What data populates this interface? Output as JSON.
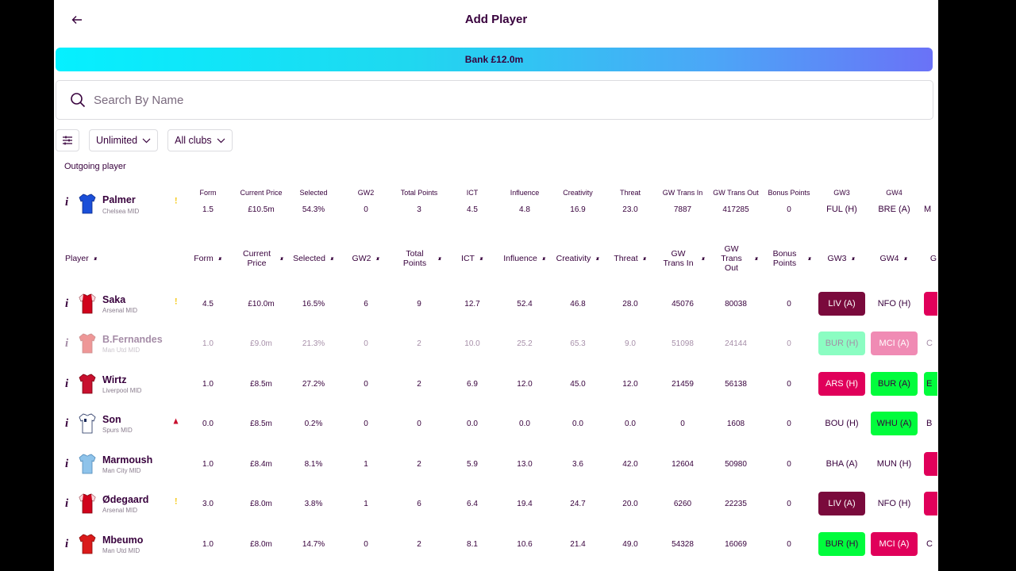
{
  "header": {
    "title": "Add Player",
    "back_icon": "arrow-left-icon"
  },
  "bank": {
    "label": "Bank £12.0m"
  },
  "search": {
    "placeholder": "Search By Name"
  },
  "filters": {
    "price": "Unlimited",
    "clubs": "All clubs"
  },
  "outgoing": {
    "label": "Outgoing player",
    "player": {
      "name": "Palmer",
      "club": "Chelsea MID",
      "shirt_color": "#1b4fd8",
      "flag": "yellow",
      "stats": [
        "1.5",
        "£10.5m",
        "54.3%",
        "0",
        "3",
        "4.5",
        "4.8",
        "16.9",
        "23.0",
        "7887",
        "417285",
        "0"
      ],
      "fixtures": [
        "FUL (H)",
        "BRE (A)",
        "M"
      ]
    },
    "headers": [
      "Form",
      "Current Price",
      "Selected",
      "GW2",
      "Total Points",
      "ICT",
      "Influence",
      "Creativity",
      "Threat",
      "GW Trans In",
      "GW Trans Out",
      "Bonus Points",
      "GW3",
      "GW4"
    ]
  },
  "table": {
    "headers": {
      "player": "Player",
      "form": "Form",
      "price": "Current Price",
      "selected": "Selected",
      "gw2": "GW2",
      "total": "Total Points",
      "ict": "ICT",
      "influence": "Influence",
      "creativity": "Creativity",
      "threat": "Threat",
      "trans_in": "GW Trans In",
      "trans_out": "GW Trans Out",
      "bonus": "Bonus Points",
      "gw3": "GW3",
      "gw4": "GW4",
      "gw5": "G"
    },
    "rows": [
      {
        "name": "Saka",
        "club": "Arsenal MID",
        "shirt": "arsenal",
        "flag": "yellow",
        "dim": false,
        "stats": [
          "4.5",
          "£10.0m",
          "16.5%",
          "6",
          "9",
          "12.7",
          "52.4",
          "46.8",
          "28.0",
          "45076",
          "80038",
          "0"
        ],
        "fixtures": [
          {
            "t": "LIV (A)",
            "bg": "#7a0a3c",
            "fg": "#ffffff"
          },
          {
            "t": "NFO (H)",
            "bg": "#ffffff",
            "fg": "#37003c"
          },
          {
            "t": "",
            "bg": "#e0005a",
            "fg": "#ffffff"
          }
        ]
      },
      {
        "name": "B.Fernandes",
        "club": "Man Utd MID",
        "shirt": "manutd",
        "flag": "",
        "dim": true,
        "stats": [
          "1.0",
          "£9.0m",
          "21.3%",
          "0",
          "2",
          "10.0",
          "25.2",
          "65.3",
          "9.0",
          "51098",
          "24144",
          "0"
        ],
        "fixtures": [
          {
            "t": "BUR (H)",
            "bg": "#01fc7a",
            "fg": "#37003c"
          },
          {
            "t": "MCI (A)",
            "bg": "#e0005a",
            "fg": "#ffffff"
          },
          {
            "t": "C",
            "bg": "#ffffff",
            "fg": "#37003c"
          }
        ]
      },
      {
        "name": "Wirtz",
        "club": "Liverpool MID",
        "shirt": "liverpool",
        "flag": "",
        "dim": false,
        "stats": [
          "1.0",
          "£8.5m",
          "27.2%",
          "0",
          "2",
          "6.9",
          "12.0",
          "45.0",
          "12.0",
          "21459",
          "56138",
          "0"
        ],
        "fixtures": [
          {
            "t": "ARS (H)",
            "bg": "#e0005a",
            "fg": "#ffffff"
          },
          {
            "t": "BUR (A)",
            "bg": "#01fc3c",
            "fg": "#37003c"
          },
          {
            "t": "E",
            "bg": "#01fc3c",
            "fg": "#37003c"
          }
        ]
      },
      {
        "name": "Son",
        "club": "Spurs MID",
        "shirt": "spurs",
        "flag": "red",
        "dim": false,
        "stats": [
          "0.0",
          "£8.5m",
          "0.2%",
          "0",
          "0",
          "0.0",
          "0.0",
          "0.0",
          "0.0",
          "0",
          "1608",
          "0"
        ],
        "fixtures": [
          {
            "t": "BOU (H)",
            "bg": "#ffffff",
            "fg": "#37003c"
          },
          {
            "t": "WHU (A)",
            "bg": "#01fc3c",
            "fg": "#37003c"
          },
          {
            "t": "B",
            "bg": "#ffffff",
            "fg": "#37003c"
          }
        ]
      },
      {
        "name": "Marmoush",
        "club": "Man City MID",
        "shirt": "mancity",
        "flag": "",
        "dim": false,
        "stats": [
          "1.0",
          "£8.4m",
          "8.1%",
          "1",
          "2",
          "5.9",
          "13.0",
          "3.6",
          "42.0",
          "12604",
          "50980",
          "0"
        ],
        "fixtures": [
          {
            "t": "BHA (A)",
            "bg": "#ffffff",
            "fg": "#37003c"
          },
          {
            "t": "MUN (H)",
            "bg": "#ffffff",
            "fg": "#37003c"
          },
          {
            "t": "",
            "bg": "#e0005a",
            "fg": "#ffffff"
          }
        ]
      },
      {
        "name": "Ødegaard",
        "club": "Arsenal MID",
        "shirt": "arsenal",
        "flag": "yellow",
        "dim": false,
        "stats": [
          "3.0",
          "£8.0m",
          "3.8%",
          "1",
          "6",
          "6.4",
          "19.4",
          "24.7",
          "20.0",
          "6260",
          "22235",
          "0"
        ],
        "fixtures": [
          {
            "t": "LIV (A)",
            "bg": "#7a0a3c",
            "fg": "#ffffff"
          },
          {
            "t": "NFO (H)",
            "bg": "#ffffff",
            "fg": "#37003c"
          },
          {
            "t": "",
            "bg": "#e0005a",
            "fg": "#ffffff"
          }
        ]
      },
      {
        "name": "Mbeumo",
        "club": "Man Utd MID",
        "shirt": "manutd",
        "flag": "",
        "dim": false,
        "stats": [
          "1.0",
          "£8.0m",
          "14.7%",
          "0",
          "2",
          "8.1",
          "10.6",
          "21.4",
          "49.0",
          "54328",
          "16069",
          "0"
        ],
        "fixtures": [
          {
            "t": "BUR (H)",
            "bg": "#01fc3c",
            "fg": "#37003c"
          },
          {
            "t": "MCI (A)",
            "bg": "#e0005a",
            "fg": "#ffffff"
          },
          {
            "t": "C",
            "bg": "#ffffff",
            "fg": "#37003c"
          }
        ]
      }
    ]
  },
  "colors": {
    "primary": "#37003c",
    "green": "#01fc3c",
    "pink": "#e0005a",
    "maroon": "#7a0a3c"
  }
}
